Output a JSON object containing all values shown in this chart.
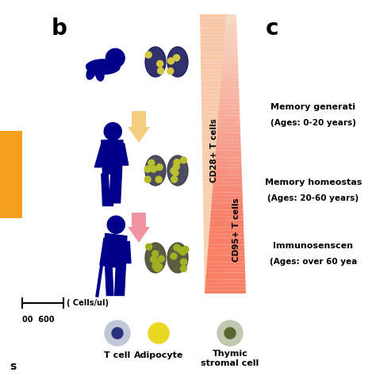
{
  "background_color": "#ffffff",
  "orange_bar_color": "#f5a020",
  "arrow_yellow_color": "#f5c870",
  "arrow_pink_color": "#f08898",
  "human_color": "#00008b",
  "cd28_color_top": "#f5c5a0",
  "cd28_color_bot": "#f0a878",
  "cd95_color_top": "#f8b8a0",
  "cd95_color_bot": "#f07060",
  "cd28_label": "CD28+ T cells",
  "cd95_label": "CD95+ T cells",
  "text_memory_gen": "Memory generati",
  "text_memory_gen2": "(Ages: 0-20 years)",
  "text_memory_home": "Memory homeostas",
  "text_memory_home2": "(Ages: 20-60 years)",
  "text_immuno": "Immunosenscen",
  "text_immuno2": "(Ages: over 60 yea",
  "text_tcell": "T cell",
  "text_adipocyte": "Adipocyte",
  "text_thymic": "Thymic\nstromal cell"
}
